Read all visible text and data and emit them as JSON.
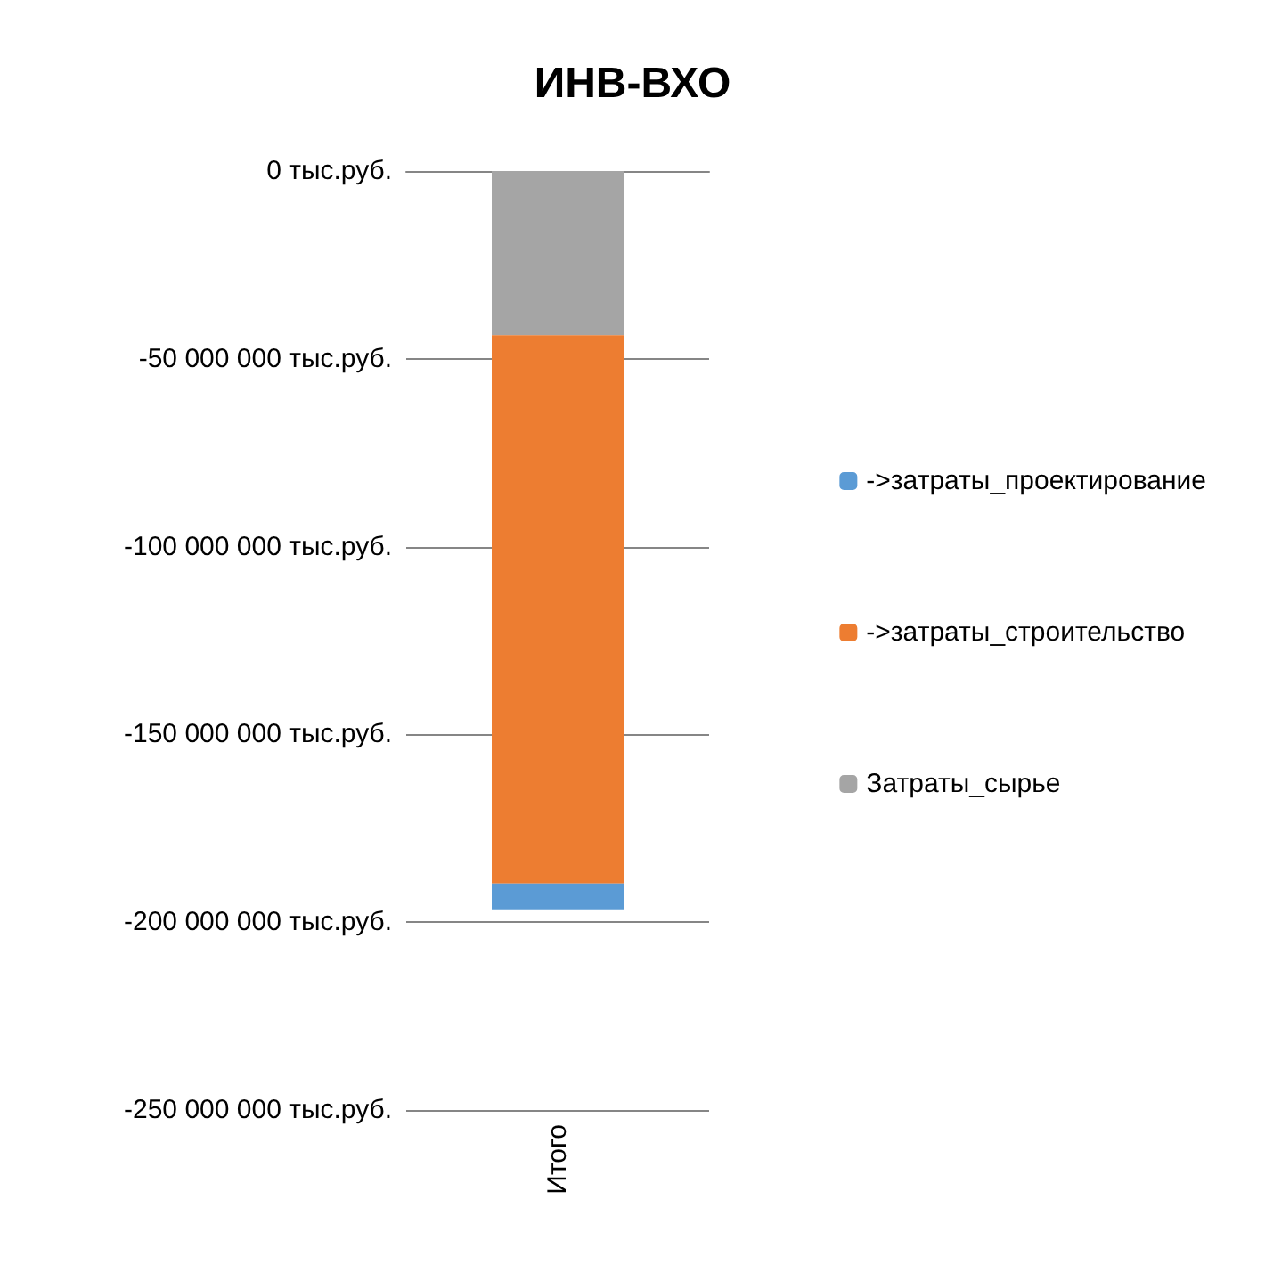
{
  "chart_data": {
    "type": "bar",
    "title": "ИНВ-ВХО",
    "categories": [
      "Итого"
    ],
    "stacked": true,
    "series": [
      {
        "name": "Затраты_сырье",
        "color": "#a5a5a5",
        "values": [
          -43700000
        ]
      },
      {
        "name": "->затраты_строительство",
        "color": "#ed7d31",
        "values": [
          -146000000
        ]
      },
      {
        "name": "->затраты_проектирование",
        "color": "#5b9bd5",
        "values": [
          -6900000
        ]
      }
    ],
    "ylim": [
      -250000000,
      0
    ],
    "yticks": [
      {
        "value": -250000000,
        "label": "-250 000 000 тыс.руб."
      },
      {
        "value": -200000000,
        "label": "-200 000 000 тыс.руб."
      },
      {
        "value": -150000000,
        "label": "-150 000 000 тыс.руб."
      },
      {
        "value": -100000000,
        "label": "-100 000 000 тыс.руб."
      },
      {
        "value": -50000000,
        "label": "-50 000 000 тыс.руб."
      },
      {
        "value": 0,
        "label": "0 тыс.руб."
      }
    ],
    "grid": "y",
    "legend": "right"
  }
}
